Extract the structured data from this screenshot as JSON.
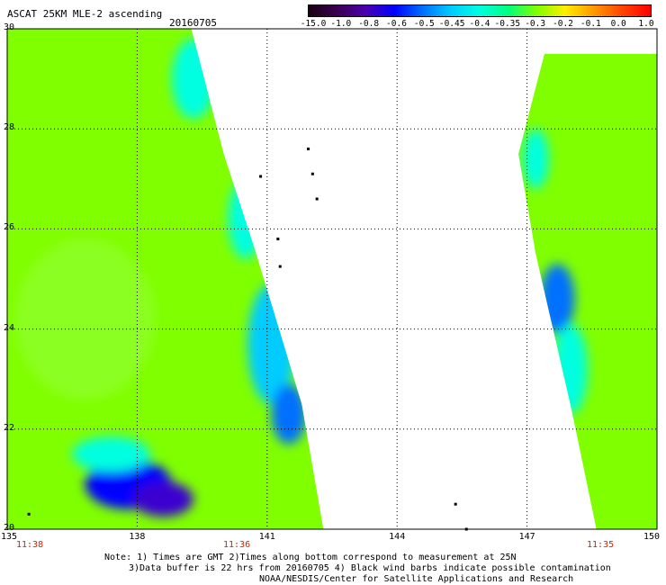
{
  "header": {
    "title": "ASCAT 25KM MLE-2 ascending",
    "date": "20160705"
  },
  "colorbar": {
    "labels": [
      "-15.0",
      "-1.0",
      "-0.8",
      "-0.6",
      "-0.5",
      "-0.45",
      "-0.4",
      "-0.35",
      "-0.3",
      "-0.2",
      "-0.1",
      "0.0",
      "1.0"
    ],
    "colors": [
      "#1a0010",
      "#3a0050",
      "#4a00b0",
      "#0000ff",
      "#0070ff",
      "#00ccff",
      "#00ffe0",
      "#00ff80",
      "#80ff00",
      "#ffee00",
      "#ff9900",
      "#ff4400",
      "#ff0000"
    ]
  },
  "axes": {
    "lat_labels": [
      "30",
      "28",
      "26",
      "24",
      "22",
      "20"
    ],
    "lon_labels": [
      "135",
      "138",
      "141",
      "144",
      "147",
      "150"
    ],
    "time_labels": [
      "11:38",
      "11:36",
      "11:35"
    ]
  },
  "notes": {
    "line1": "Note: 1) Times are GMT 2)Times along bottom correspond to measurement at 25N",
    "line2": "3)Data buffer is 22 hrs from 20160705 4) Black wind barbs indicate possible contamination",
    "line3": "NOAA/NESDIS/Center for Satellite Applications and Research"
  },
  "map": {
    "lat_range": [
      20,
      30
    ],
    "lon_range": [
      135,
      150
    ],
    "background_color": "#80ff00",
    "swaths": [
      {
        "name": "west-swath",
        "polygon": [
          [
            135.0,
            30.0
          ],
          [
            139.25,
            30.0
          ],
          [
            140.0,
            27.5
          ],
          [
            140.75,
            25.5
          ],
          [
            141.8,
            22.5
          ],
          [
            142.3,
            20.0
          ],
          [
            135.0,
            20.0
          ]
        ],
        "patches": [
          {
            "lon": 137.8,
            "lat": 20.9,
            "rx": 1.0,
            "ry": 0.5,
            "color": "#0000ff"
          },
          {
            "lon": 138.6,
            "lat": 20.6,
            "rx": 0.7,
            "ry": 0.35,
            "color": "#3a00d0"
          },
          {
            "lon": 137.4,
            "lat": 21.5,
            "rx": 0.9,
            "ry": 0.35,
            "color": "#00ffe0"
          },
          {
            "lon": 141.1,
            "lat": 23.7,
            "rx": 0.55,
            "ry": 1.2,
            "color": "#00ccff"
          },
          {
            "lon": 141.5,
            "lat": 22.3,
            "rx": 0.4,
            "ry": 0.6,
            "color": "#0070ff"
          },
          {
            "lon": 139.3,
            "lat": 29.0,
            "rx": 0.5,
            "ry": 0.8,
            "color": "#00ffe0"
          },
          {
            "lon": 140.5,
            "lat": 26.2,
            "rx": 0.4,
            "ry": 0.8,
            "color": "#00ffe0"
          },
          {
            "lon": 136.8,
            "lat": 24.2,
            "rx": 1.6,
            "ry": 1.6,
            "color": "#8cff20"
          }
        ]
      },
      {
        "name": "east-swath",
        "polygon": [
          [
            147.4,
            29.5
          ],
          [
            150.0,
            29.5
          ],
          [
            150.0,
            20.0
          ],
          [
            148.6,
            20.0
          ],
          [
            148.0,
            22.5
          ],
          [
            147.2,
            25.5
          ],
          [
            146.8,
            27.5
          ]
        ],
        "patches": [
          {
            "lon": 147.7,
            "lat": 24.6,
            "rx": 0.4,
            "ry": 0.7,
            "color": "#0070ff"
          },
          {
            "lon": 148.0,
            "lat": 23.2,
            "rx": 0.4,
            "ry": 0.9,
            "color": "#00ffe0"
          },
          {
            "lon": 147.2,
            "lat": 27.4,
            "rx": 0.3,
            "ry": 0.6,
            "color": "#00ffe0"
          }
        ]
      }
    ],
    "islands": [
      {
        "lon": 141.95,
        "lat": 27.6
      },
      {
        "lon": 142.05,
        "lat": 27.1
      },
      {
        "lon": 142.15,
        "lat": 26.6
      },
      {
        "lon": 140.85,
        "lat": 27.05
      },
      {
        "lon": 141.25,
        "lat": 25.8
      },
      {
        "lon": 141.3,
        "lat": 25.25
      },
      {
        "lon": 145.35,
        "lat": 20.5
      },
      {
        "lon": 145.6,
        "lat": 20.0
      },
      {
        "lon": 135.5,
        "lat": 20.3
      }
    ]
  }
}
